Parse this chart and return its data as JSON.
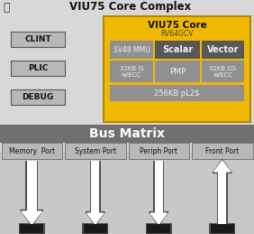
{
  "title": "VIU75 Core Complex",
  "bg_color": "#d8d8d8",
  "bg_lower": "#c8c8c8",
  "yellow": "#f0b800",
  "dark_yellow": "#b08800",
  "gray_box": "#909090",
  "dark_gray_box": "#585858",
  "light_gray": "#b8b8b8",
  "white": "#ffffff",
  "bus_bg": "#707070",
  "bus_border": "#505050",
  "black": "#000000",
  "arrow_outline": "#505050",
  "arrow_fill": "#ffffff",
  "arrow_base": "#1a1a1a",
  "clint_label": "CLINT",
  "plic_label": "PLIC",
  "debug_label": "DEBUG",
  "core_title": "VIU75 Core",
  "core_sub": "RV64GCV",
  "mmu_label": "SV48 MMU",
  "scalar_label": "Scalar",
  "vector_label": "Vector",
  "icache_label": "32KB IS\nw/ECC",
  "pmp_label": "PMP",
  "dcache_label": "32KB DS\nw/ECC",
  "l2_label": "256KB pL2$",
  "bus_label": "Bus Matrix",
  "ports": [
    "Memory  Port",
    "System Port",
    "Periph Port",
    "Front Port"
  ]
}
